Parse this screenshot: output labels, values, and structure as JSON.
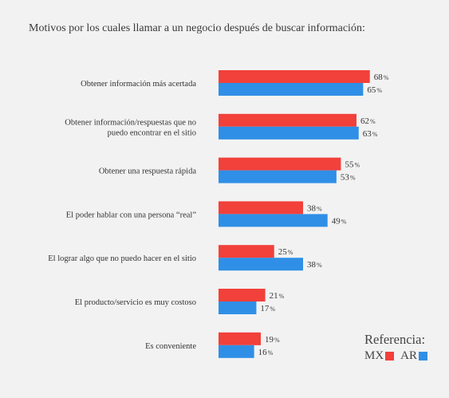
{
  "title": "Motivos por los cuales llamar a un negocio después de buscar información:",
  "legend": {
    "title": "Referencia:",
    "items": [
      {
        "label": "MX",
        "color": "#f2403a"
      },
      {
        "label": "AR",
        "color": "#2f8fe6"
      }
    ]
  },
  "chart_data": {
    "type": "bar",
    "orientation": "horizontal",
    "categories": [
      [
        "Obtener información más acertada"
      ],
      [
        "Obtener información/respuestas que no",
        "puedo encontrar en el sitio"
      ],
      [
        "Obtener una respuesta rápida"
      ],
      [
        "El poder hablar con una persona “real”"
      ],
      [
        "El lograr algo que no puedo hacer en el sitio"
      ],
      [
        "El producto/servicio es muy costoso"
      ],
      [
        "Es conveniente"
      ]
    ],
    "series": [
      {
        "name": "MX",
        "color": "#f2403a",
        "values": [
          68,
          62,
          55,
          38,
          25,
          21,
          19
        ]
      },
      {
        "name": "AR",
        "color": "#2f8fe6",
        "values": [
          65,
          63,
          53,
          49,
          38,
          17,
          16
        ]
      }
    ],
    "value_suffix": "%",
    "xlim": [
      0,
      100
    ],
    "legend_position": "bottom-right",
    "grid": false
  }
}
